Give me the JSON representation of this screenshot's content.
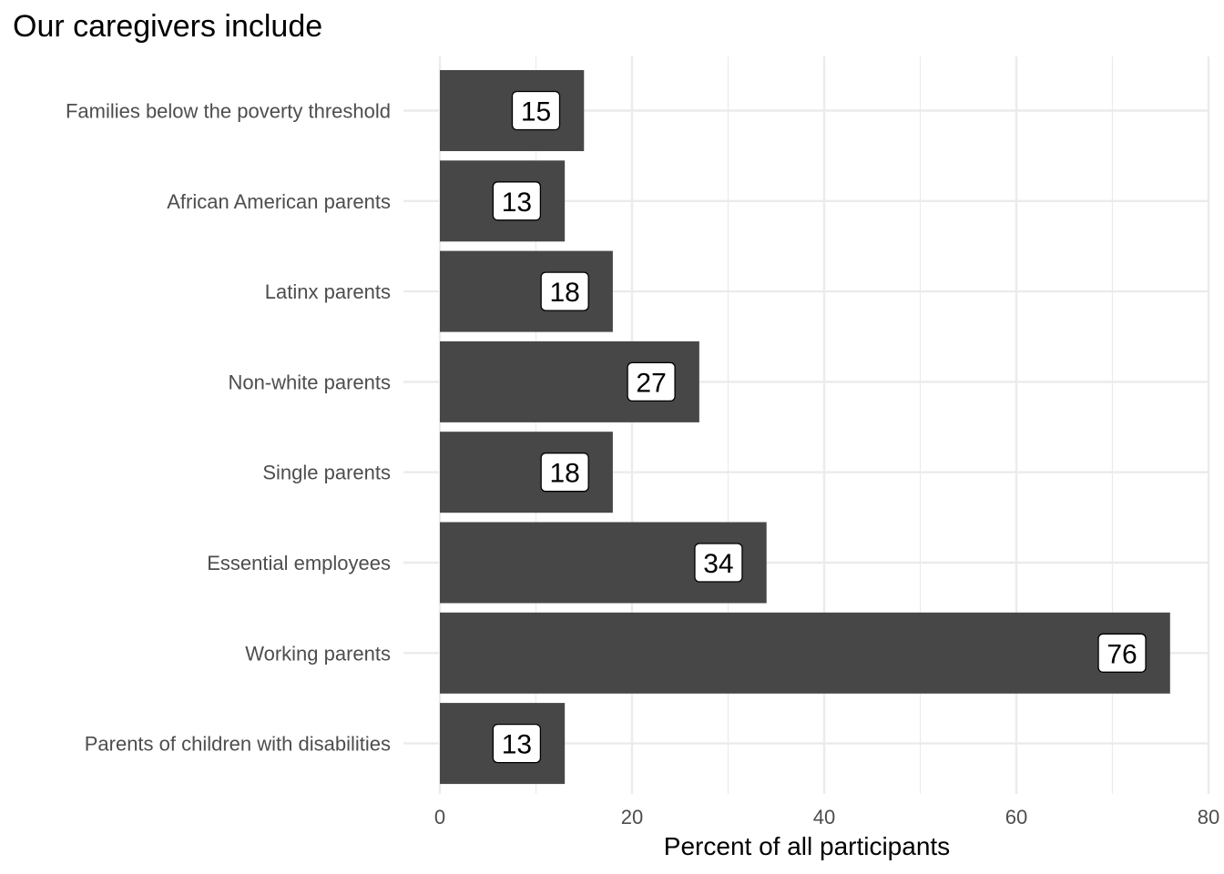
{
  "chart_data": {
    "type": "bar",
    "orientation": "horizontal",
    "title": "Our caregivers include",
    "xlabel": "Percent of all participants",
    "ylabel": "",
    "categories": [
      "Families below the poverty threshold",
      "African American parents",
      "Latinx parents",
      "Non-white parents",
      "Single parents",
      "Essential employees",
      "Working parents",
      "Parents of children with disabilities"
    ],
    "values": [
      15,
      13,
      18,
      27,
      18,
      34,
      76,
      13
    ],
    "value_labels": [
      "15",
      "13",
      "18",
      "27",
      "18",
      "34",
      "76",
      "13"
    ],
    "xlim": [
      0,
      80
    ],
    "x_ticks": [
      0,
      20,
      40,
      60,
      80
    ],
    "x_tick_labels": [
      "0",
      "20",
      "40",
      "60",
      "80"
    ],
    "grid": true,
    "legend": "none",
    "colors": {
      "bar": "#474747",
      "grid": "#ebebeb",
      "label_box": "#ffffff",
      "label_border": "#000000"
    }
  }
}
